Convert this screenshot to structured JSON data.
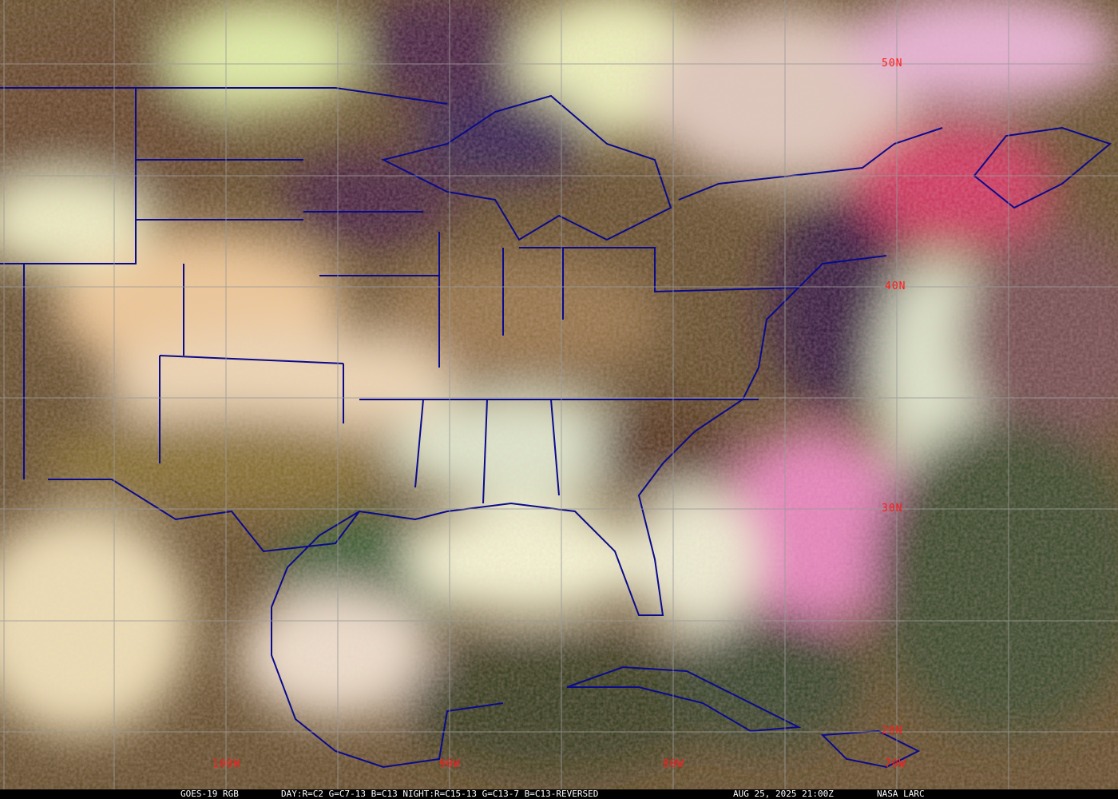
{
  "product": "GOES-19 RGB",
  "recipe": "DAY:R=C2 G=C7-13 B=C13 NIGHT:R=C15-13 G=C13-7 B=C13-REVERSED",
  "timestamp": "AUG 25, 2025 21:00Z",
  "credit": "NASA LARC",
  "latitude_labels": [
    "50N",
    "40N",
    "30N",
    "20N"
  ],
  "longitude_labels": [
    "100W",
    "90W",
    "80W",
    "70W"
  ],
  "colors": {
    "boundary": "#0a0a8c",
    "grid": "#9a9a9a",
    "label": "#ff1a1a",
    "caption_bg": "#000000",
    "caption_text": "#ffffff"
  }
}
